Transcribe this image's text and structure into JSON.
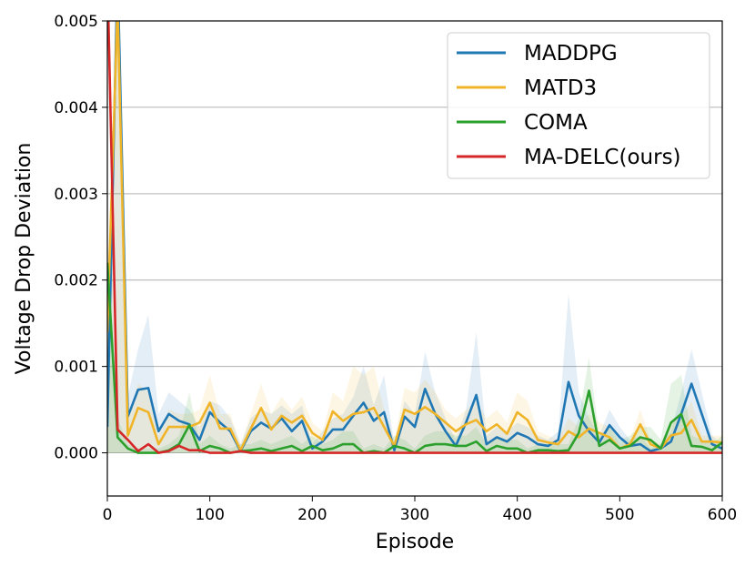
{
  "chart_data": {
    "type": "line",
    "title": "",
    "xlabel": "Episode",
    "ylabel": "Voltage Drop Deviation",
    "xlim": [
      0,
      600
    ],
    "ylim": [
      -0.0005,
      0.005
    ],
    "xticks": [
      0,
      100,
      200,
      300,
      400,
      500,
      600
    ],
    "xtick_labels": [
      "0",
      "100",
      "200",
      "300",
      "400",
      "500",
      "600"
    ],
    "yticks": [
      0.0,
      0.001,
      0.002,
      0.003,
      0.004,
      0.005
    ],
    "ytick_labels": [
      "0.000",
      "0.001",
      "0.002",
      "0.003",
      "0.004",
      "0.005"
    ],
    "grid": "horizontal",
    "legend_position": "top-right",
    "x": [
      0,
      10,
      20,
      30,
      40,
      50,
      60,
      70,
      80,
      90,
      100,
      110,
      120,
      130,
      140,
      150,
      160,
      170,
      180,
      190,
      200,
      210,
      220,
      230,
      240,
      250,
      260,
      270,
      280,
      290,
      300,
      310,
      320,
      330,
      340,
      350,
      360,
      370,
      380,
      390,
      400,
      410,
      420,
      430,
      440,
      450,
      460,
      470,
      480,
      490,
      500,
      510,
      520,
      530,
      540,
      550,
      560,
      570,
      580,
      590,
      600
    ],
    "series": [
      {
        "name": "MADDPG",
        "color": "#1f77b4",
        "values": [
          0.0003,
          0.0056,
          0.00042,
          0.00073,
          0.00075,
          0.00025,
          0.00045,
          0.00037,
          0.00033,
          0.00015,
          0.00047,
          0.00035,
          0.00025,
          2e-05,
          0.00025,
          0.00035,
          0.00028,
          0.0004,
          0.00025,
          0.00037,
          5e-05,
          0.00013,
          0.00027,
          0.00027,
          0.00043,
          0.00058,
          0.00037,
          0.00047,
          3e-05,
          0.00042,
          0.0003,
          0.00074,
          0.00045,
          0.00025,
          8e-05,
          0.00035,
          0.00067,
          0.0001,
          0.00018,
          0.00013,
          0.00023,
          0.00018,
          0.0001,
          8e-05,
          0.00015,
          0.00082,
          0.00043,
          0.00025,
          0.00012,
          0.00032,
          0.00018,
          8e-05,
          0.0001,
          2e-05,
          5e-05,
          0.00013,
          0.00045,
          0.0008,
          0.00045,
          0.0001,
          5e-05
        ],
        "band": [
          0.0006,
          0.006,
          0.00065,
          0.0012,
          0.0016,
          0.00045,
          0.0007,
          0.0006,
          0.0005,
          0.0003,
          0.0006,
          0.00055,
          0.0004,
          0.0001,
          0.0004,
          0.0005,
          0.00045,
          0.00055,
          0.00045,
          0.00055,
          0.0001,
          0.00025,
          0.0004,
          0.00045,
          0.00065,
          0.001,
          0.00055,
          0.0009,
          0.0001,
          0.0006,
          0.00045,
          0.00117,
          0.0007,
          0.0004,
          0.00015,
          0.0005,
          0.0014,
          0.0002,
          0.0003,
          0.00025,
          0.00035,
          0.0003,
          0.0002,
          0.00015,
          0.00025,
          0.00185,
          0.0007,
          0.0004,
          0.0002,
          0.0005,
          0.0003,
          0.00015,
          0.0002,
          5e-05,
          0.0001,
          0.00025,
          0.0007,
          0.0012,
          0.0007,
          0.0002,
          0.0001
        ]
      },
      {
        "name": "MATD3",
        "color": "#f0b429",
        "values": [
          0.0014,
          0.0052,
          0.0002,
          0.00052,
          0.00047,
          0.0001,
          0.0003,
          0.0003,
          0.0003,
          0.00035,
          0.00058,
          0.00028,
          0.00028,
          3e-05,
          0.00028,
          0.00052,
          0.00027,
          0.00043,
          0.00035,
          0.00043,
          0.00023,
          0.00015,
          0.00048,
          0.00037,
          0.00045,
          0.00047,
          0.00052,
          0.0003,
          8e-05,
          0.0005,
          0.00045,
          0.00053,
          0.00045,
          0.00035,
          0.00025,
          0.00033,
          0.00038,
          0.00025,
          0.00033,
          0.00022,
          0.00047,
          0.00038,
          0.00015,
          0.00012,
          0.0001,
          0.00025,
          0.00018,
          0.00028,
          0.00023,
          0.00018,
          5e-05,
          0.0001,
          0.00033,
          0.0001,
          5e-05,
          0.0002,
          0.00023,
          0.00038,
          0.00013,
          0.00013,
          0.00012
        ],
        "band": [
          0.0016,
          0.0055,
          0.0004,
          0.0008,
          0.0007,
          0.0002,
          0.0005,
          0.00045,
          0.00045,
          0.0005,
          0.0009,
          0.00045,
          0.00045,
          0.0001,
          0.00045,
          0.0008,
          0.00045,
          0.00065,
          0.0005,
          0.00065,
          0.00035,
          0.00025,
          0.0007,
          0.0006,
          0.001,
          0.0009,
          0.001,
          0.0005,
          0.00015,
          0.00075,
          0.0007,
          0.00085,
          0.0007,
          0.0005,
          0.0004,
          0.0005,
          0.0006,
          0.0004,
          0.0005,
          0.00035,
          0.0007,
          0.0006,
          0.00025,
          0.0002,
          0.00015,
          0.0004,
          0.0003,
          0.00045,
          0.00035,
          0.0003,
          0.0001,
          0.00015,
          0.0005,
          0.00015,
          0.0001,
          0.00035,
          0.0004,
          0.0006,
          0.0002,
          0.0002,
          0.0002
        ]
      },
      {
        "name": "COMA",
        "color": "#2ca02c",
        "values": [
          0.0022,
          0.00018,
          5e-05,
          0.0,
          0.0,
          0.0,
          3e-05,
          0.0001,
          0.00032,
          2e-05,
          8e-05,
          5e-05,
          0.0,
          2e-05,
          3e-05,
          5e-05,
          2e-05,
          5e-05,
          8e-05,
          2e-05,
          8e-05,
          3e-05,
          5e-05,
          0.0001,
          0.0001,
          0.0,
          2e-05,
          0.0,
          8e-05,
          5e-05,
          0.0,
          8e-05,
          0.0001,
          0.0001,
          8e-05,
          8e-05,
          0.00013,
          2e-05,
          8e-05,
          5e-05,
          5e-05,
          0.0,
          3e-05,
          3e-05,
          2e-05,
          3e-05,
          0.00023,
          0.00072,
          8e-05,
          0.00015,
          5e-05,
          8e-05,
          0.00018,
          0.00015,
          5e-05,
          0.00035,
          0.00045,
          8e-05,
          7e-05,
          3e-05,
          0.00012
        ],
        "band": [
          0.0025,
          0.0004,
          0.0001,
          5e-05,
          5e-05,
          5e-05,
          0.0001,
          0.0002,
          0.0007,
          0.0001,
          0.0002,
          0.0001,
          5e-05,
          0.0001,
          0.0001,
          0.00015,
          0.0001,
          0.00015,
          0.0002,
          0.0001,
          0.0002,
          0.0001,
          0.00015,
          0.00025,
          0.00025,
          5e-05,
          0.0001,
          5e-05,
          0.0002,
          0.00015,
          5e-05,
          0.0002,
          0.00025,
          0.00025,
          0.0002,
          0.0002,
          0.0003,
          0.0001,
          0.0002,
          0.00015,
          0.00015,
          5e-05,
          0.0001,
          0.0001,
          0.0001,
          0.0001,
          0.0004,
          0.0011,
          0.0002,
          0.0003,
          0.00015,
          0.0002,
          0.0003,
          0.0003,
          0.00015,
          0.0008,
          0.0009,
          0.0002,
          0.00015,
          0.0001,
          0.0002
        ]
      },
      {
        "name": "MA-DELC(ours)",
        "color": "#d62728",
        "values": [
          0.0056,
          0.00027,
          0.00015,
          2e-05,
          0.0001,
          0.0,
          2e-05,
          8e-05,
          3e-05,
          3e-05,
          0.0,
          0.0,
          0.0,
          2e-05,
          0.0,
          0.0,
          0.0,
          0.0,
          0.0,
          0.0,
          0.0,
          0.0,
          0.0,
          0.0,
          0.0,
          0.0,
          0.0,
          0.0,
          0.0,
          0.0,
          0.0,
          0.0,
          0.0,
          0.0,
          0.0,
          0.0,
          0.0,
          0.0,
          0.0,
          0.0,
          0.0,
          0.0,
          0.0,
          0.0,
          0.0,
          0.0,
          0.0,
          0.0,
          0.0,
          0.0,
          0.0,
          0.0,
          0.0,
          0.0,
          0.0,
          0.0,
          0.0,
          0.0,
          0.0,
          0.0,
          0.0
        ],
        "band": null
      }
    ]
  }
}
